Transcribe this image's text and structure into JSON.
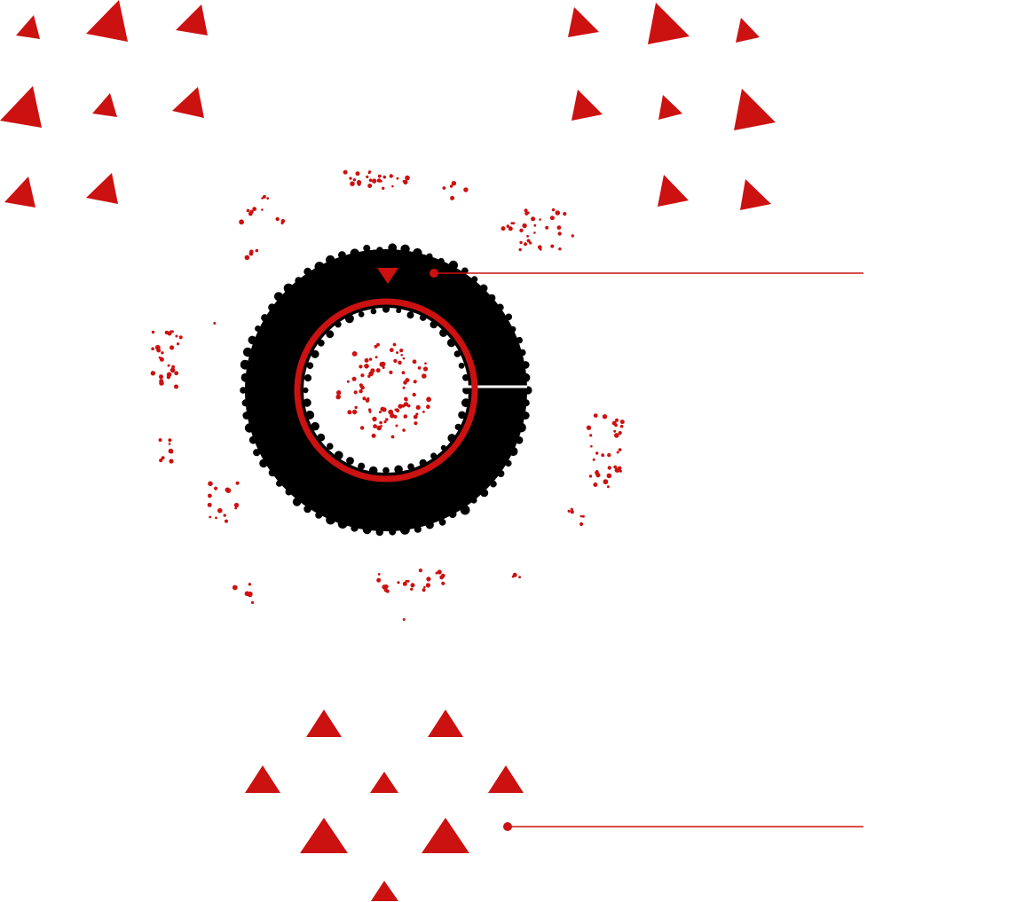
{
  "colors": {
    "background": "#ffffff",
    "accent_red": "#cc1111",
    "ring_black": "#000000",
    "callout_line": "#cc1111",
    "spoke_white": "#ffffff"
  },
  "figure": {
    "description_icon": "tire-with-scattered-debris",
    "has_text": false,
    "callout_count": 2,
    "triangle_groups": [
      "top-left-cluster",
      "top-right-cluster",
      "bottom-pyramid-cluster"
    ]
  }
}
